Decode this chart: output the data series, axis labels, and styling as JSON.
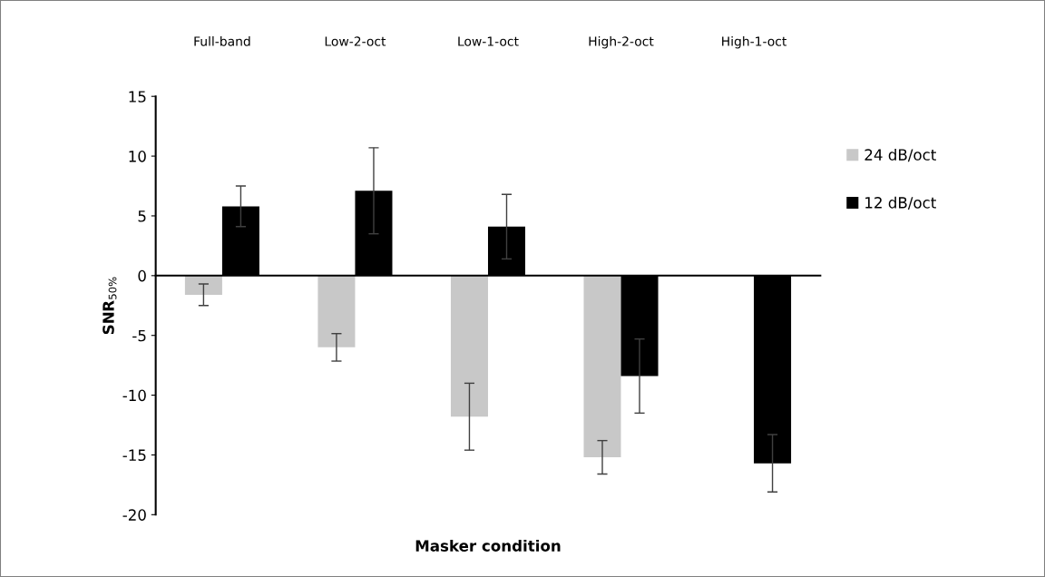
{
  "chart_data": {
    "type": "bar",
    "xlabel": "Masker condition",
    "ylabel": "SNR$_{50%}$",
    "categories": [
      "Full-band",
      "Low-2-oct",
      "Low-1-oct",
      "High-2-oct",
      "High-1-oct"
    ],
    "series": [
      {
        "name": "24 dB/oct",
        "color": "#c8c8c8",
        "values": [
          -1.6,
          -6.0,
          -11.8,
          -15.2,
          null
        ],
        "errors": [
          0.9,
          1.15,
          2.8,
          1.4,
          null
        ]
      },
      {
        "name": "12 dB/oct",
        "color": "#000000",
        "values": [
          5.8,
          7.1,
          4.1,
          -8.4,
          -15.7
        ],
        "errors": [
          1.7,
          3.6,
          2.7,
          3.1,
          2.4
        ]
      }
    ],
    "ylim": [
      -20,
      15
    ],
    "yticks": [
      {
        "value": -20,
        "label": "-20"
      },
      {
        "value": -15,
        "label": "-15"
      },
      {
        "value": -10,
        "label": "-10"
      },
      {
        "value": -5,
        "label": "-5"
      },
      0,
      5,
      10,
      15
    ],
    "legend": "right"
  }
}
